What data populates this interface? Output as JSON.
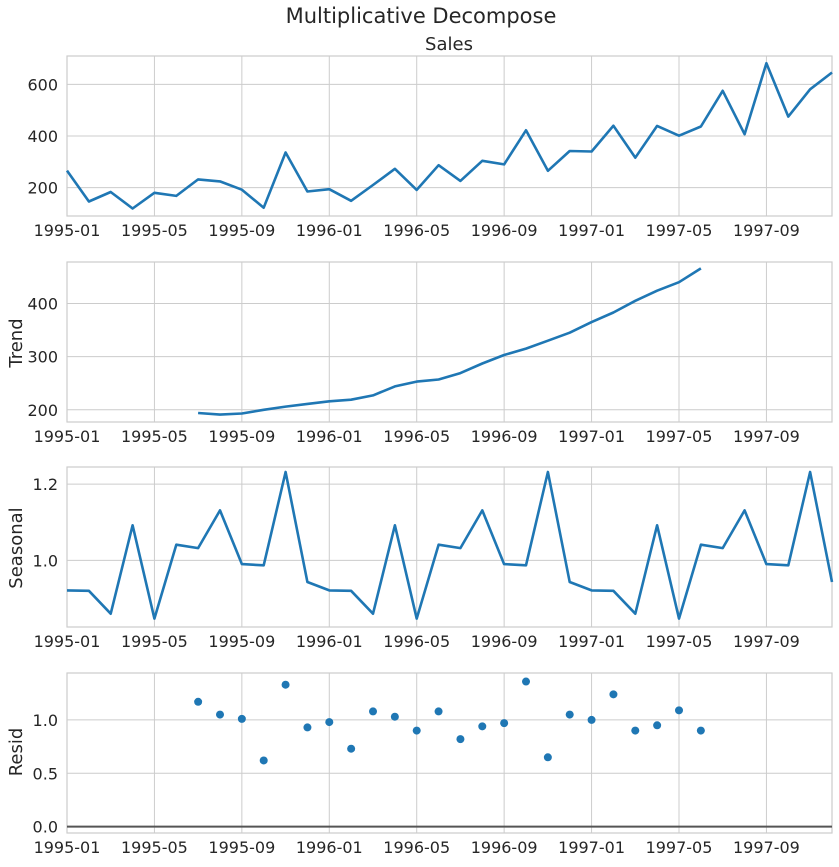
{
  "figure": {
    "suptitle": "Multiplicative Decompose",
    "series_color": "#1f77b4"
  },
  "chart_data": [
    {
      "type": "line",
      "title": "Sales",
      "xlabel": "",
      "ylabel": "",
      "x_start": "1995-01",
      "x_end": "1997-12",
      "xticks": [
        "1995-01",
        "1995-05",
        "1995-09",
        "1996-01",
        "1996-05",
        "1996-09",
        "1997-01",
        "1997-05",
        "1997-09"
      ],
      "yticks": [
        200,
        400,
        600
      ],
      "ylim": [
        90,
        710
      ],
      "grid": true,
      "series": [
        {
          "x": [
            "1995-01",
            "1995-02",
            "1995-03",
            "1995-04",
            "1995-05",
            "1995-06",
            "1995-07",
            "1995-08",
            "1995-09",
            "1995-10",
            "1995-11",
            "1995-12",
            "1996-01",
            "1996-02",
            "1996-03",
            "1996-04",
            "1996-05",
            "1996-06",
            "1996-07",
            "1996-08",
            "1996-09",
            "1996-10",
            "1996-11",
            "1996-12",
            "1997-01",
            "1997-02",
            "1997-03",
            "1997-04",
            "1997-05",
            "1997-06",
            "1997-07",
            "1997-08",
            "1997-09",
            "1997-10",
            "1997-11",
            "1997-12"
          ],
          "values": [
            266,
            146,
            183,
            119,
            180,
            168,
            232,
            224,
            192,
            122,
            336,
            185,
            194,
            149,
            210,
            273,
            191,
            287,
            226,
            304,
            290,
            422,
            265,
            342,
            340,
            440,
            316,
            439,
            401,
            437,
            575,
            407,
            682,
            475,
            581,
            646
          ]
        }
      ]
    },
    {
      "type": "line",
      "title": "",
      "xlabel": "",
      "ylabel": "Trend",
      "x_start": "1995-01",
      "x_end": "1997-12",
      "xticks": [
        "1995-01",
        "1995-05",
        "1995-09",
        "1996-01",
        "1996-05",
        "1996-09",
        "1997-01",
        "1997-05",
        "1997-09"
      ],
      "yticks": [
        200,
        300,
        400
      ],
      "ylim": [
        177,
        478
      ],
      "grid": true,
      "series": [
        {
          "x": [
            "1995-07",
            "1995-08",
            "1995-09",
            "1995-10",
            "1995-11",
            "1995-12",
            "1996-01",
            "1996-02",
            "1996-03",
            "1996-04",
            "1996-05",
            "1996-06",
            "1996-07",
            "1996-08",
            "1996-09",
            "1996-10",
            "1996-11",
            "1996-12",
            "1997-01",
            "1997-02",
            "1997-03",
            "1997-04",
            "1997-05",
            "1997-06"
          ],
          "values": [
            194,
            191,
            193,
            200,
            206,
            211,
            216,
            219,
            227,
            244,
            253,
            257,
            269,
            287,
            303,
            315,
            330,
            345,
            365,
            383,
            405,
            424,
            440,
            466
          ]
        }
      ]
    },
    {
      "type": "line",
      "title": "",
      "xlabel": "",
      "ylabel": "Seasonal",
      "x_start": "1995-01",
      "x_end": "1997-12",
      "xticks": [
        "1995-01",
        "1995-05",
        "1995-09",
        "1996-01",
        "1996-05",
        "1996-09",
        "1997-01",
        "1997-05",
        "1997-09"
      ],
      "yticks": [
        1.0,
        1.2
      ],
      "ytick_labels": [
        "1.0",
        "1.2"
      ],
      "ylim": [
        0.825,
        1.245
      ],
      "grid": true,
      "series": [
        {
          "x": [
            "1995-01",
            "1995-02",
            "1995-03",
            "1995-04",
            "1995-05",
            "1995-06",
            "1995-07",
            "1995-08",
            "1995-09",
            "1995-10",
            "1995-11",
            "1995-12",
            "1996-01",
            "1996-02",
            "1996-03",
            "1996-04",
            "1996-05",
            "1996-06",
            "1996-07",
            "1996-08",
            "1996-09",
            "1996-10",
            "1996-11",
            "1996-12",
            "1997-01",
            "1997-02",
            "1997-03",
            "1997-04",
            "1997-05",
            "1997-06",
            "1997-07",
            "1997-08",
            "1997-09",
            "1997-10",
            "1997-11",
            "1997-12"
          ],
          "values": [
            0.921,
            0.92,
            0.86,
            1.092,
            0.847,
            1.041,
            1.032,
            1.131,
            0.99,
            0.987,
            1.232,
            0.943,
            0.921,
            0.92,
            0.86,
            1.092,
            0.847,
            1.041,
            1.032,
            1.131,
            0.99,
            0.987,
            1.232,
            0.943,
            0.921,
            0.92,
            0.86,
            1.092,
            0.847,
            1.041,
            1.032,
            1.131,
            0.99,
            0.987,
            1.232,
            0.943
          ]
        }
      ]
    },
    {
      "type": "scatter",
      "title": "",
      "xlabel": "",
      "ylabel": "Resid",
      "x_start": "1995-01",
      "x_end": "1997-12",
      "xticks": [
        "1995-01",
        "1995-05",
        "1995-09",
        "1996-01",
        "1996-05",
        "1996-09",
        "1997-01",
        "1997-05",
        "1997-09"
      ],
      "yticks": [
        0.0,
        0.5,
        1.0
      ],
      "ytick_labels": [
        "0.0",
        "0.5",
        "1.0"
      ],
      "ylim": [
        -0.06,
        1.44
      ],
      "grid": true,
      "baseline": 0.0,
      "series": [
        {
          "x": [
            "1995-07",
            "1995-08",
            "1995-09",
            "1995-10",
            "1995-11",
            "1995-12",
            "1996-01",
            "1996-02",
            "1996-03",
            "1996-04",
            "1996-05",
            "1996-06",
            "1996-07",
            "1996-08",
            "1996-09",
            "1996-10",
            "1996-11",
            "1996-12",
            "1997-01",
            "1997-02",
            "1997-03",
            "1997-04",
            "1997-05",
            "1997-06"
          ],
          "values": [
            1.17,
            1.05,
            1.01,
            0.62,
            1.33,
            0.93,
            0.98,
            0.73,
            1.08,
            1.03,
            0.9,
            1.08,
            0.82,
            0.94,
            0.97,
            1.36,
            0.65,
            1.05,
            1.0,
            1.24,
            0.9,
            0.95,
            1.09,
            0.9
          ]
        }
      ]
    }
  ]
}
